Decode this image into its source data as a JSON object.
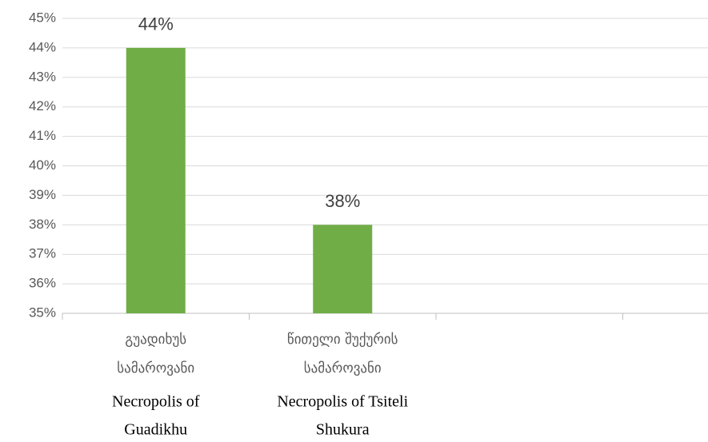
{
  "chart_data": {
    "type": "bar",
    "categories": [
      [
        "გუადიხუს",
        "სამაროვანი"
      ],
      [
        "წითელი  შუქურის",
        "სამაროვანი"
      ],
      null,
      null
    ],
    "english_labels": [
      [
        "Necropolis of",
        "Guadikhu"
      ],
      [
        "Necropolis of Tsiteli",
        "Shukura"
      ],
      null,
      null
    ],
    "values": [
      44,
      38,
      null,
      null
    ],
    "value_labels": [
      "44%",
      "38%",
      null,
      null
    ],
    "color": "#70ad47",
    "ylim": [
      35,
      45
    ],
    "yticks": [
      {
        "value": 35,
        "label": "35%"
      },
      {
        "value": 36,
        "label": "36%"
      },
      {
        "value": 37,
        "label": "37%"
      },
      {
        "value": 38,
        "label": "38%"
      },
      {
        "value": 39,
        "label": "39%"
      },
      {
        "value": 40,
        "label": "40%"
      },
      {
        "value": 41,
        "label": "41%"
      },
      {
        "value": 42,
        "label": "42%"
      },
      {
        "value": 43,
        "label": "43%"
      },
      {
        "value": 44,
        "label": "44%"
      },
      {
        "value": 45,
        "label": "45%"
      }
    ],
    "grid": true
  }
}
